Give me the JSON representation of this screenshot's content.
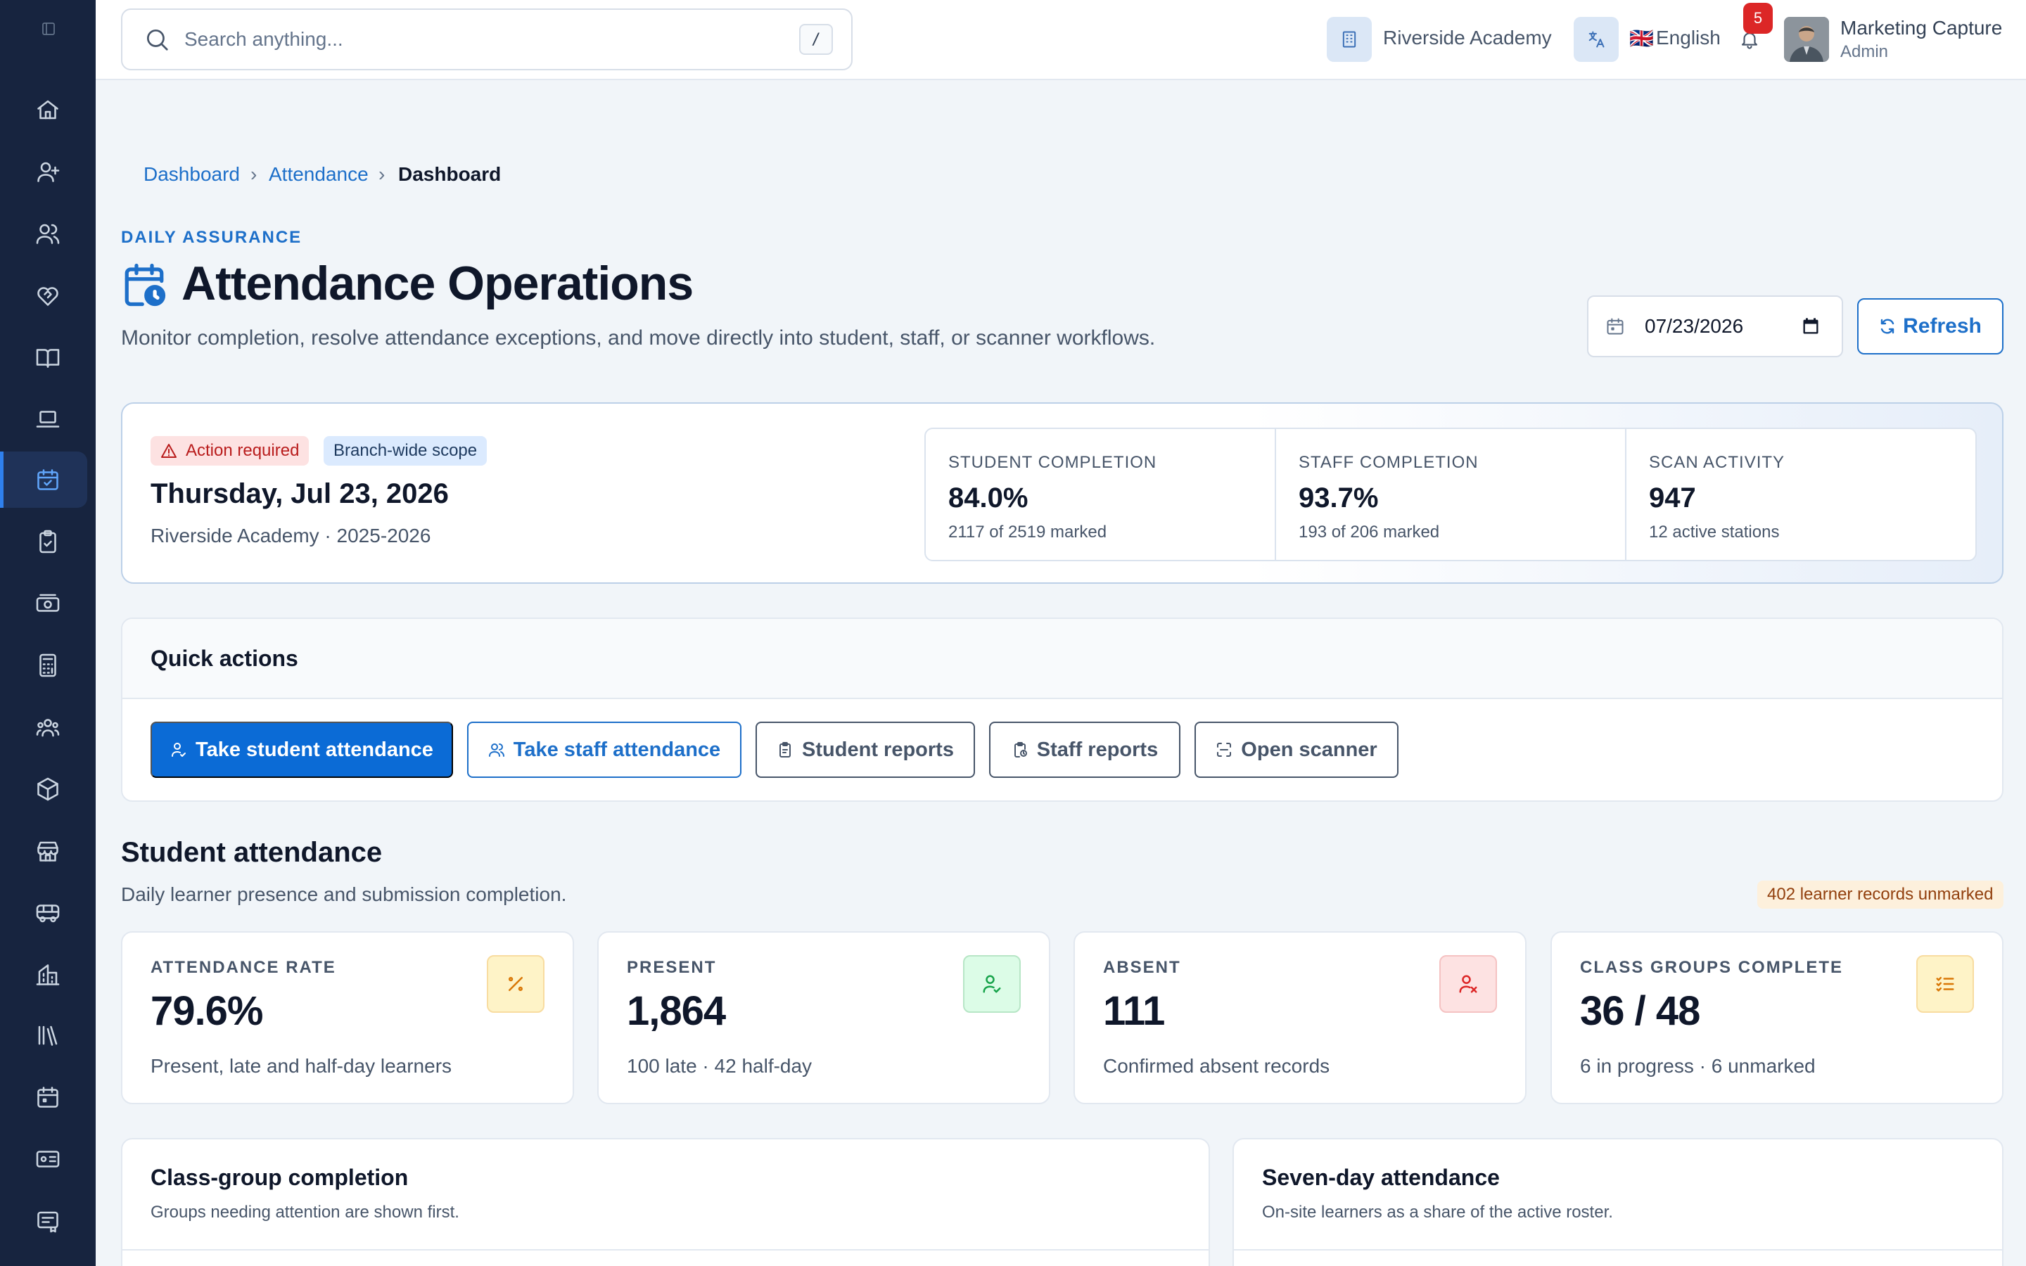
{
  "topbar": {
    "search_placeholder": "Search anything...",
    "search_shortcut": "/",
    "school": "Riverside Academy",
    "language_flag": "🇬🇧",
    "language": "English",
    "notifications_count": "5",
    "user_name": "Marketing Capture",
    "user_role": "Admin"
  },
  "sidebar": {
    "items": [
      "home",
      "add-student",
      "students",
      "health",
      "academics",
      "online-learning",
      "attendance",
      "assignments",
      "fees",
      "accounting",
      "staff",
      "inventory",
      "store",
      "transport",
      "hostel",
      "library",
      "calendar",
      "id-cards",
      "certificates"
    ],
    "active": "attendance"
  },
  "breadcrumb": [
    "Dashboard",
    "Attendance",
    "Dashboard"
  ],
  "header": {
    "eyebrow": "DAILY ASSURANCE",
    "title": "Attendance Operations",
    "subtitle": "Monitor completion, resolve attendance exceptions, and move directly into student, staff, or scanner workflows.",
    "date_value": "07/23/2026",
    "refresh_label": "Refresh"
  },
  "summary": {
    "badge_alert": "Action required",
    "badge_scope": "Branch-wide scope",
    "date_long": "Thursday, Jul 23, 2026",
    "school_session": "Riverside Academy · 2025-2026",
    "stats": [
      {
        "label": "STUDENT COMPLETION",
        "value": "84.0%",
        "sub": "2117 of 2519 marked"
      },
      {
        "label": "STAFF COMPLETION",
        "value": "93.7%",
        "sub": "193 of 206 marked"
      },
      {
        "label": "SCAN ACTIVITY",
        "value": "947",
        "sub": "12 active stations"
      }
    ]
  },
  "quick_actions": {
    "title": "Quick actions",
    "buttons": [
      "Take student attendance",
      "Take staff attendance",
      "Student reports",
      "Staff reports",
      "Open scanner"
    ]
  },
  "student_attendance": {
    "title": "Student attendance",
    "subtitle": "Daily learner presence and submission completion.",
    "unmarked_badge": "402 learner records unmarked",
    "kpis": [
      {
        "label": "ATTENDANCE RATE",
        "value": "79.6%",
        "sub": "Present, late and half-day learners",
        "icon": "percent-icon",
        "tone": "#d97706"
      },
      {
        "label": "PRESENT",
        "value": "1,864",
        "sub": "100 late · 42 half-day",
        "icon": "user-check-icon",
        "tone": "#16a34a"
      },
      {
        "label": "ABSENT",
        "value": "111",
        "sub": "Confirmed absent records",
        "icon": "user-x-icon",
        "tone": "#dc2626"
      },
      {
        "label": "CLASS GROUPS COMPLETE",
        "value": "36 / 48",
        "sub": "6 in progress · 6 unmarked",
        "icon": "list-check-icon",
        "tone": "#d97706"
      }
    ]
  },
  "cards": {
    "class_group": {
      "title": "Class-group completion",
      "desc": "Groups needing attention are shown first."
    },
    "seven_day": {
      "title": "Seven-day attendance",
      "desc": "On-site learners as a share of the active roster."
    }
  },
  "colors": {
    "accent": "#1d6fc9",
    "sidebar": "#17243f",
    "danger": "#dc2626"
  }
}
